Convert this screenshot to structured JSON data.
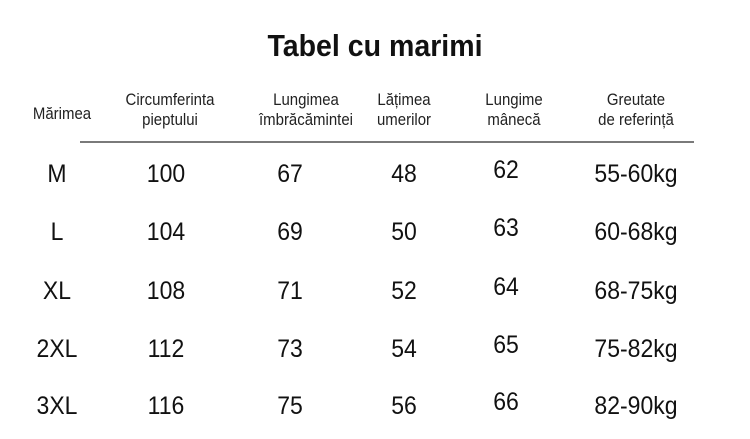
{
  "title": "Tabel cu marimi",
  "headers": [
    "Mărimea",
    "Circumferinta\npieptului",
    "Lungimea\nîmbrăcămintei",
    "Lățimea\numerilor",
    "Lungime\nmânecă",
    "Greutate\nde referință"
  ],
  "rows": [
    [
      "M",
      "100",
      "67",
      "48",
      "62",
      "55-60kg"
    ],
    [
      "L",
      "104",
      "69",
      "50",
      "63",
      "60-68kg"
    ],
    [
      "XL",
      "108",
      "71",
      "52",
      "64",
      "68-75kg"
    ],
    [
      "2XL",
      "112",
      "73",
      "54",
      "65",
      "75-82kg"
    ],
    [
      "3XL",
      "116",
      "75",
      "56",
      "66",
      "82-90kg"
    ]
  ]
}
